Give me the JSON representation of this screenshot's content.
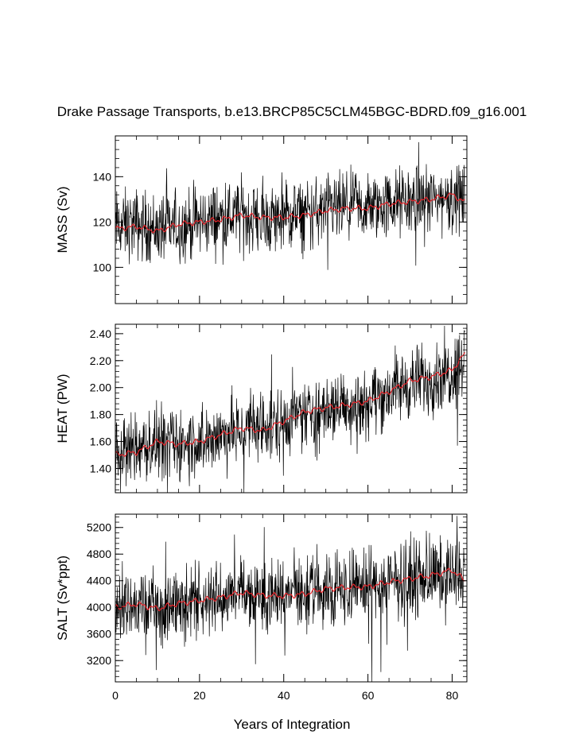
{
  "title": "Drake Passage Transports, b.e13.BRCP85C5CLM45BGC-BDRD.f09_g16.001",
  "xlabel": "Years of Integration",
  "x_ticks": [
    0,
    20,
    40,
    60,
    80
  ],
  "colors": {
    "raw": "#000000",
    "smooth": "#e8242a",
    "frame": "#000000"
  },
  "chart_data": [
    {
      "type": "line",
      "panel": "mass",
      "ylabel": "MASS (Sv)",
      "xlim": [
        0,
        83.5
      ],
      "ylim": [
        84,
        158
      ],
      "y_ticks": [
        100,
        120,
        140
      ],
      "y_tick_labels": [
        "100",
        "120",
        "140"
      ],
      "x": [
        0,
        5,
        10,
        15,
        20,
        25,
        30,
        35,
        40,
        45,
        50,
        55,
        60,
        65,
        70,
        75,
        80,
        83
      ],
      "series": [
        {
          "name": "",
          "style": "raw-annual-series",
          "approx_range": [
            86,
            156
          ],
          "values": [
            118,
            119,
            117,
            118,
            120,
            122,
            123,
            121,
            122,
            123,
            125,
            126,
            126,
            128,
            129,
            130,
            131,
            130
          ]
        },
        {
          "name": "",
          "style": "smoothed-running-mean",
          "values": [
            117,
            118,
            116,
            119,
            120,
            121,
            123,
            122,
            122,
            123,
            125,
            126,
            126,
            128,
            129,
            130,
            132,
            129
          ]
        }
      ]
    },
    {
      "type": "line",
      "panel": "heat",
      "ylabel": "HEAT (PW)",
      "xlim": [
        0,
        83.5
      ],
      "ylim": [
        1.22,
        2.47
      ],
      "y_ticks": [
        1.4,
        1.6,
        1.8,
        2.0,
        2.2,
        2.4
      ],
      "y_tick_labels": [
        "1.40",
        "1.60",
        "1.80",
        "2.00",
        "2.20",
        "2.40"
      ],
      "x": [
        0,
        5,
        10,
        15,
        20,
        25,
        30,
        35,
        40,
        45,
        50,
        55,
        60,
        65,
        70,
        75,
        80,
        83
      ],
      "series": [
        {
          "name": "",
          "style": "raw-annual-series",
          "approx_range": [
            1.25,
            2.45
          ],
          "values": [
            1.5,
            1.55,
            1.58,
            1.58,
            1.6,
            1.65,
            1.68,
            1.7,
            1.75,
            1.8,
            1.85,
            1.88,
            1.9,
            1.97,
            2.03,
            2.07,
            2.12,
            2.24
          ]
        },
        {
          "name": "",
          "style": "smoothed-running-mean",
          "values": [
            1.5,
            1.52,
            1.6,
            1.58,
            1.6,
            1.65,
            1.7,
            1.68,
            1.75,
            1.82,
            1.85,
            1.87,
            1.9,
            1.97,
            2.05,
            2.08,
            2.13,
            2.25
          ]
        }
      ]
    },
    {
      "type": "line",
      "panel": "salt",
      "ylabel": "SALT (Sv*ppt)",
      "xlim": [
        0,
        83.5
      ],
      "ylim": [
        2880,
        5400
      ],
      "y_ticks": [
        3200,
        3600,
        4000,
        4400,
        4800,
        5200
      ],
      "y_tick_labels": [
        "3200",
        "3600",
        "4000",
        "4400",
        "4800",
        "5200"
      ],
      "x": [
        0,
        5,
        10,
        15,
        20,
        25,
        30,
        35,
        40,
        45,
        50,
        55,
        60,
        65,
        70,
        75,
        80,
        83
      ],
      "series": [
        {
          "name": "",
          "style": "raw-annual-series",
          "approx_range": [
            2950,
            5400
          ],
          "values": [
            4030,
            4050,
            4000,
            4050,
            4100,
            4170,
            4200,
            4150,
            4180,
            4200,
            4270,
            4300,
            4300,
            4380,
            4420,
            4460,
            4500,
            4450
          ]
        },
        {
          "name": "",
          "style": "smoothed-running-mean",
          "values": [
            4000,
            4050,
            3980,
            4060,
            4100,
            4150,
            4220,
            4180,
            4170,
            4200,
            4280,
            4300,
            4310,
            4380,
            4430,
            4480,
            4560,
            4400
          ]
        }
      ]
    }
  ]
}
